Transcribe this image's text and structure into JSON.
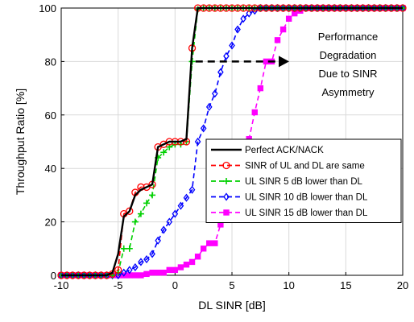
{
  "chart_data": {
    "type": "line",
    "title": "",
    "xlabel": "DL SINR [dB]",
    "ylabel": "Throughput Ratio [%]",
    "xlim": [
      -10,
      20
    ],
    "ylim": [
      0,
      100
    ],
    "xticks": [
      -10,
      -5,
      0,
      5,
      10,
      15,
      20
    ],
    "yticks": [
      0,
      20,
      40,
      60,
      80,
      100
    ],
    "grid": true,
    "legend_position": "lower-right",
    "annotation": {
      "lines": [
        "Performance",
        "Degradation",
        "Due to  SINR",
        "Asymmetry"
      ],
      "arrow_from": [
        1.8,
        80
      ],
      "arrow_to": [
        9.6,
        80
      ]
    },
    "series": [
      {
        "name": "Perfect ACK/NACK",
        "color": "#000000",
        "line_style": "solid",
        "marker": "none",
        "x": [
          -10,
          -6,
          -5.5,
          -5,
          -4.5,
          -4,
          -3.5,
          -3,
          -2.5,
          -2,
          -1.5,
          -1,
          -0.5,
          0,
          0.5,
          1,
          1.5,
          2,
          2.5,
          20
        ],
        "y": [
          0,
          0,
          1,
          8,
          22,
          24,
          30,
          32,
          33,
          34,
          48,
          49,
          50,
          50,
          50,
          51,
          85,
          100,
          100,
          100
        ]
      },
      {
        "name": "SINR of UL and DL are same",
        "color": "#ff0000",
        "line_style": "dashed",
        "marker": "circle",
        "x": [
          -10,
          -9.5,
          -9,
          -8.5,
          -8,
          -7.5,
          -7,
          -6.5,
          -6,
          -5.5,
          -5,
          -4.5,
          -4,
          -3.5,
          -3,
          -2.5,
          -2,
          -1.5,
          -1,
          -0.5,
          0,
          0.5,
          1,
          1.5,
          2,
          2.5,
          3,
          3.5,
          4,
          4.5,
          5,
          5.5,
          6,
          6.5,
          7,
          7.5,
          8,
          8.5,
          9,
          9.5,
          10,
          10.5,
          11,
          11.5,
          12,
          12.5,
          13,
          13.5,
          14,
          14.5,
          15,
          15.5,
          16,
          16.5,
          17,
          17.5,
          18,
          18.5,
          19,
          19.5,
          20
        ],
        "y": [
          0,
          0,
          0,
          0,
          0,
          0,
          0,
          0,
          0,
          0.5,
          2,
          23,
          24,
          31,
          33,
          33,
          34,
          48,
          49,
          50,
          50,
          50,
          50,
          85,
          100,
          100,
          100,
          100,
          100,
          100,
          100,
          100,
          100,
          100,
          100,
          100,
          100,
          100,
          100,
          100,
          100,
          100,
          100,
          100,
          100,
          100,
          100,
          100,
          100,
          100,
          100,
          100,
          100,
          100,
          100,
          100,
          100,
          100,
          100,
          100,
          100
        ]
      },
      {
        "name": "UL SINR 5 dB lower than DL",
        "color": "#00d000",
        "line_style": "dashed",
        "marker": "plus",
        "x": [
          -10,
          -9.5,
          -9,
          -8.5,
          -8,
          -7.5,
          -7,
          -6.5,
          -6,
          -5.5,
          -5,
          -4.5,
          -4,
          -3.5,
          -3,
          -2.5,
          -2,
          -1.5,
          -1,
          -0.5,
          0,
          0.5,
          1,
          1.5,
          2,
          2.5,
          3,
          3.5,
          4,
          4.5,
          5,
          5.5,
          6,
          6.5,
          7,
          7.5,
          8,
          8.5,
          9,
          9.5,
          10,
          10.5,
          11,
          11.5,
          12,
          12.5,
          13,
          13.5,
          14,
          14.5,
          15,
          15.5,
          16,
          16.5,
          17,
          17.5,
          18,
          18.5,
          19,
          19.5,
          20
        ],
        "y": [
          0,
          0,
          0,
          0,
          0,
          0,
          0,
          0,
          0,
          0,
          1,
          10,
          10,
          20,
          23,
          27,
          30,
          44,
          46,
          48,
          49,
          49,
          50,
          80,
          99.5,
          100,
          100,
          100,
          100,
          100,
          100,
          100,
          100,
          100,
          100,
          100,
          100,
          100,
          100,
          100,
          100,
          100,
          100,
          100,
          100,
          100,
          100,
          100,
          100,
          100,
          100,
          100,
          100,
          100,
          100,
          100,
          100,
          100,
          100,
          100,
          100
        ]
      },
      {
        "name": "UL SINR 10 dB lower than DL",
        "color": "#0000ff",
        "line_style": "dashed",
        "marker": "diamond",
        "x": [
          -10,
          -9.5,
          -9,
          -8.5,
          -8,
          -7.5,
          -7,
          -6.5,
          -6,
          -5.5,
          -5,
          -4.5,
          -4,
          -3.5,
          -3,
          -2.5,
          -2,
          -1.5,
          -1,
          -0.5,
          0,
          0.5,
          1,
          1.5,
          2,
          2.5,
          3,
          3.5,
          4,
          4.5,
          5,
          5.5,
          6,
          6.5,
          7,
          7.5,
          8,
          8.5,
          9,
          9.5,
          10,
          10.5,
          11,
          11.5,
          12,
          12.5,
          13,
          13.5,
          14,
          14.5,
          15,
          15.5,
          16,
          16.5,
          17,
          17.5,
          18,
          18.5,
          19,
          19.5,
          20
        ],
        "y": [
          0,
          0,
          0,
          0,
          0,
          0,
          0,
          0,
          0,
          0,
          0,
          1,
          2,
          3,
          5,
          6,
          8,
          13,
          17,
          20,
          23,
          26,
          29,
          32,
          50,
          55,
          63,
          68,
          76,
          82,
          86,
          92,
          96,
          98,
          99,
          100,
          100,
          100,
          100,
          100,
          100,
          100,
          100,
          100,
          100,
          100,
          100,
          100,
          100,
          100,
          100,
          100,
          100,
          100,
          100,
          100,
          100,
          100,
          100,
          100,
          100
        ]
      },
      {
        "name": "UL SINR 15 dB lower than DL",
        "color": "#ff00ff",
        "line_style": "dashed",
        "marker": "square",
        "x": [
          -10,
          -9.5,
          -9,
          -8.5,
          -8,
          -7.5,
          -7,
          -6.5,
          -6,
          -5.5,
          -5,
          -4.5,
          -4,
          -3.5,
          -3,
          -2.5,
          -2,
          -1.5,
          -1,
          -0.5,
          0,
          0.5,
          1,
          1.5,
          2,
          2.5,
          3,
          3.5,
          4,
          4.5,
          5,
          5.5,
          6,
          6.5,
          7,
          7.5,
          8,
          8.5,
          9,
          9.5,
          10,
          10.5,
          11,
          11.5,
          12,
          12.5,
          13,
          13.5,
          14,
          14.5,
          15,
          15.5,
          16,
          16.5,
          17,
          17.5,
          18,
          18.5,
          19,
          19.5,
          20
        ],
        "y": [
          0,
          0,
          0,
          0,
          0,
          0,
          0,
          0,
          0,
          0,
          0,
          0,
          0,
          0,
          0,
          0.5,
          1,
          1,
          1,
          2,
          2,
          3,
          4,
          5,
          7,
          10,
          12,
          12,
          19,
          26,
          32,
          37,
          44,
          51,
          61,
          70,
          80,
          80,
          88,
          92,
          96,
          98,
          99,
          100,
          100,
          100,
          100,
          100,
          100,
          100,
          100,
          100,
          100,
          100,
          100,
          100,
          100,
          100,
          100,
          100,
          100
        ]
      }
    ]
  }
}
